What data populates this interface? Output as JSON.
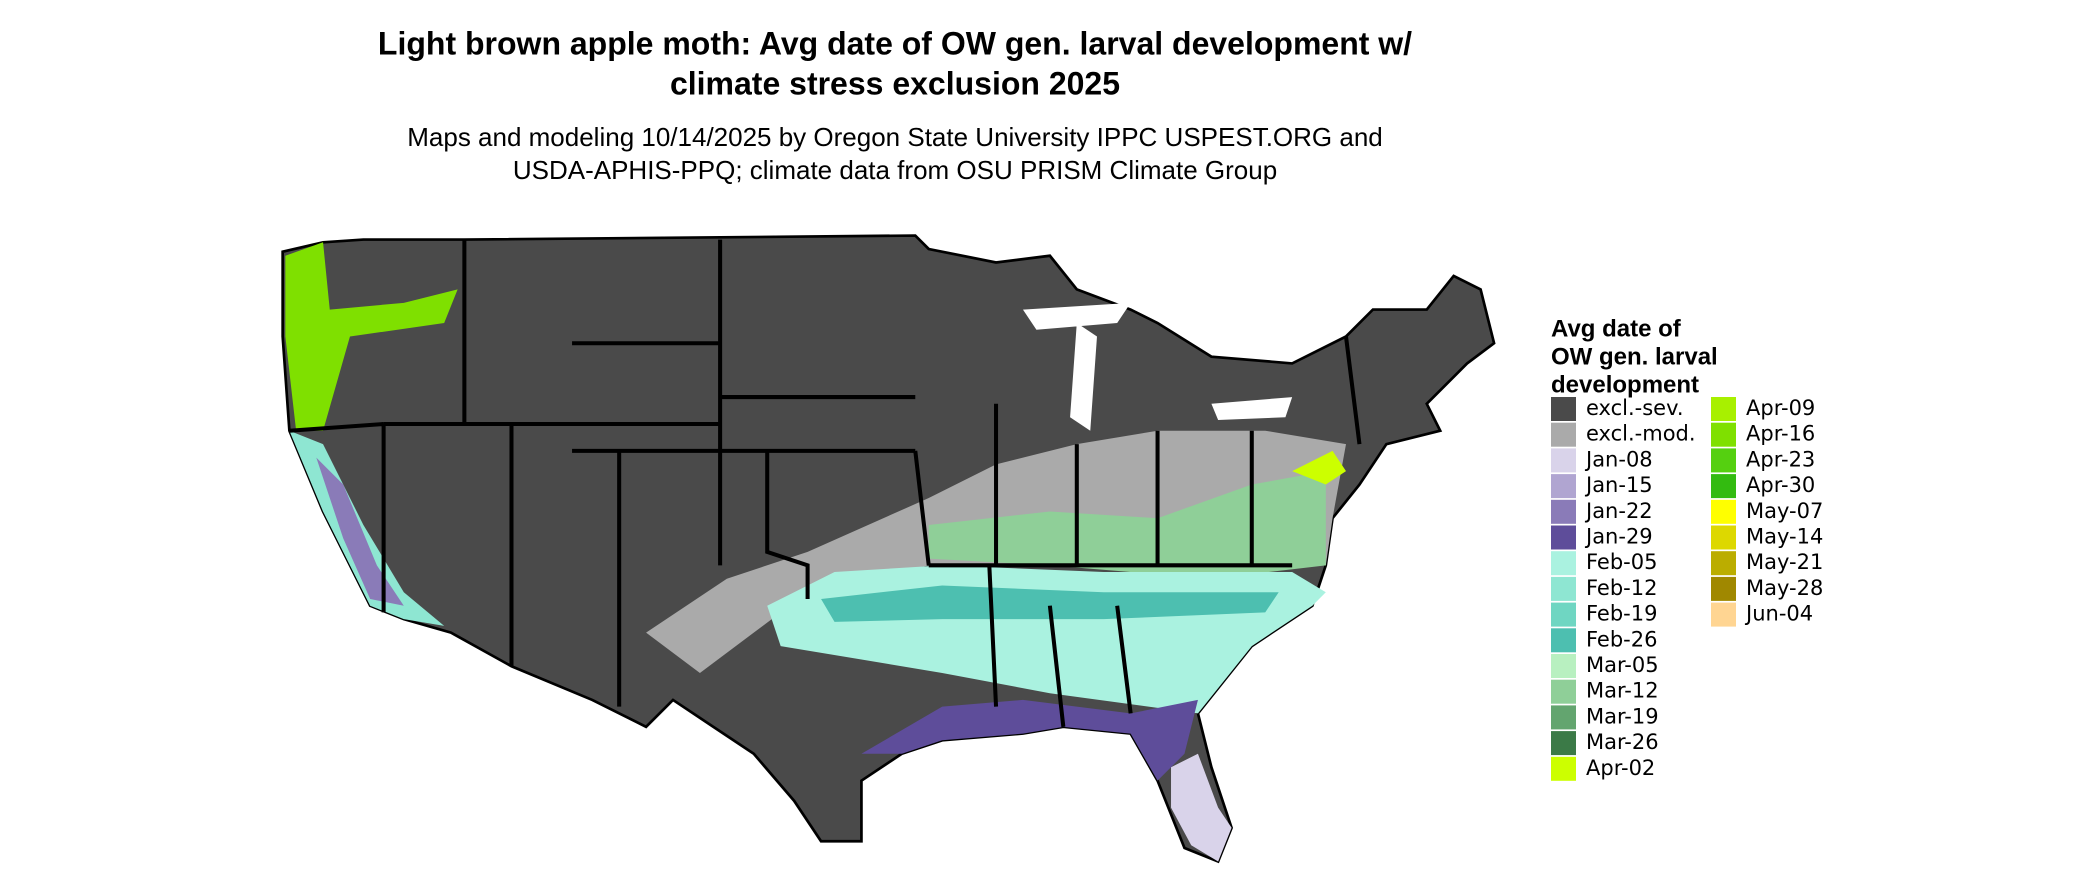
{
  "title": [
    "Light brown apple moth: Avg date of OW gen. larval development w/",
    "climate stress exclusion 2025"
  ],
  "subtitle": [
    "Maps and modeling 10/14/2025 by Oregon State University IPPC USPEST.ORG and",
    "USDA-APHIS-PPQ; climate data from OSU PRISM Climate Group"
  ],
  "legend": {
    "title": [
      "Avg date of",
      "OW gen. larval",
      "development"
    ],
    "items": [
      {
        "label": "excl.-sev.",
        "color": "#4a4a4a"
      },
      {
        "label": "excl.-mod.",
        "color": "#aaaaaa"
      },
      {
        "label": "Jan-08",
        "color": "#d9d3ea"
      },
      {
        "label": "Jan-15",
        "color": "#b0a5d1"
      },
      {
        "label": "Jan-22",
        "color": "#8a7bb8"
      },
      {
        "label": "Jan-29",
        "color": "#5e4d9a"
      },
      {
        "label": "Feb-05",
        "color": "#aaf2e0"
      },
      {
        "label": "Feb-12",
        "color": "#8ee6d2"
      },
      {
        "label": "Feb-19",
        "color": "#6fd6c2"
      },
      {
        "label": "Feb-26",
        "color": "#4dbfb0"
      },
      {
        "label": "Mar-05",
        "color": "#b8f0c0"
      },
      {
        "label": "Mar-12",
        "color": "#8fcf98"
      },
      {
        "label": "Mar-19",
        "color": "#63a56f"
      },
      {
        "label": "Mar-26",
        "color": "#3b7a47"
      },
      {
        "label": "Apr-02",
        "color": "#ccff00"
      },
      {
        "label": "Apr-09",
        "color": "#a8f000"
      },
      {
        "label": "Apr-16",
        "color": "#7fe000"
      },
      {
        "label": "Apr-23",
        "color": "#55d010"
      },
      {
        "label": "Apr-30",
        "color": "#33bb10"
      },
      {
        "label": "May-07",
        "color": "#ffff00"
      },
      {
        "label": "May-14",
        "color": "#ddd800"
      },
      {
        "label": "May-21",
        "color": "#bbad00"
      },
      {
        "label": "May-28",
        "color": "#a08800"
      },
      {
        "label": "Jun-04",
        "color": "#ffd592"
      }
    ]
  }
}
